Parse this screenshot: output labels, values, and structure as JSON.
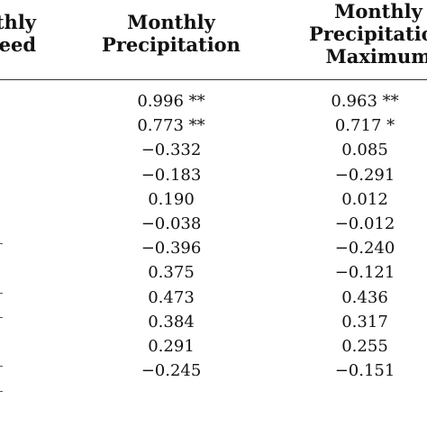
{
  "headers": {
    "col0": [
      "nthly",
      "eed"
    ],
    "col1": [
      "Monthly",
      "Precipitation"
    ],
    "col2": [
      "Monthly",
      "Precipitation",
      "Maximum"
    ]
  },
  "rows": [
    {
      "precipitation": "0.996 **",
      "precip_max": "0.963 **"
    },
    {
      "precipitation": "0.773 **",
      "precip_max": "0.717 *"
    },
    {
      "precipitation": "−0.332",
      "precip_max": "0.085"
    },
    {
      "precipitation": "−0.183",
      "precip_max": "−0.291"
    },
    {
      "precipitation": "0.190",
      "precip_max": "0.012"
    },
    {
      "precipitation": "−0.038",
      "precip_max": "−0.012"
    },
    {
      "precipitation": "−0.396",
      "precip_max": "−0.240"
    },
    {
      "precipitation": "0.375",
      "precip_max": "−0.121"
    },
    {
      "precipitation": "0.473",
      "precip_max": "0.436"
    },
    {
      "precipitation": "0.384",
      "precip_max": "0.317"
    },
    {
      "precipitation": "0.291",
      "precip_max": "0.255"
    },
    {
      "precipitation": "−0.245",
      "precip_max": "−0.151"
    }
  ]
}
